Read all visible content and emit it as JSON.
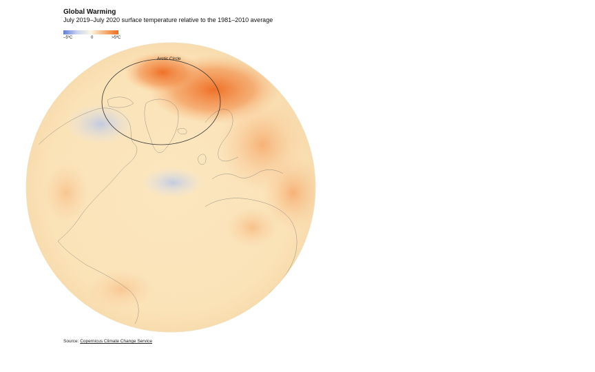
{
  "header": {
    "title": "Global Warming",
    "subtitle": "July 2019–July 2020 surface temperature relative to the 1981–2010 average"
  },
  "legend": {
    "min_label": "–5ºC",
    "mid_label": "0",
    "max_label": ">5ºC",
    "colors": [
      "#5f7fd8",
      "#c9d3ef",
      "#fbf6e6",
      "#f6b27a",
      "#ee6a1f"
    ]
  },
  "map": {
    "arctic_label": "Arctic Circle",
    "ocean_color": "#fbe6bf",
    "hot_color": "#ee6a1f",
    "cold_color": "#c4cfe8"
  },
  "footer": {
    "source_prefix": "Source:",
    "source_link": "Copernicus Climate Change Service"
  }
}
